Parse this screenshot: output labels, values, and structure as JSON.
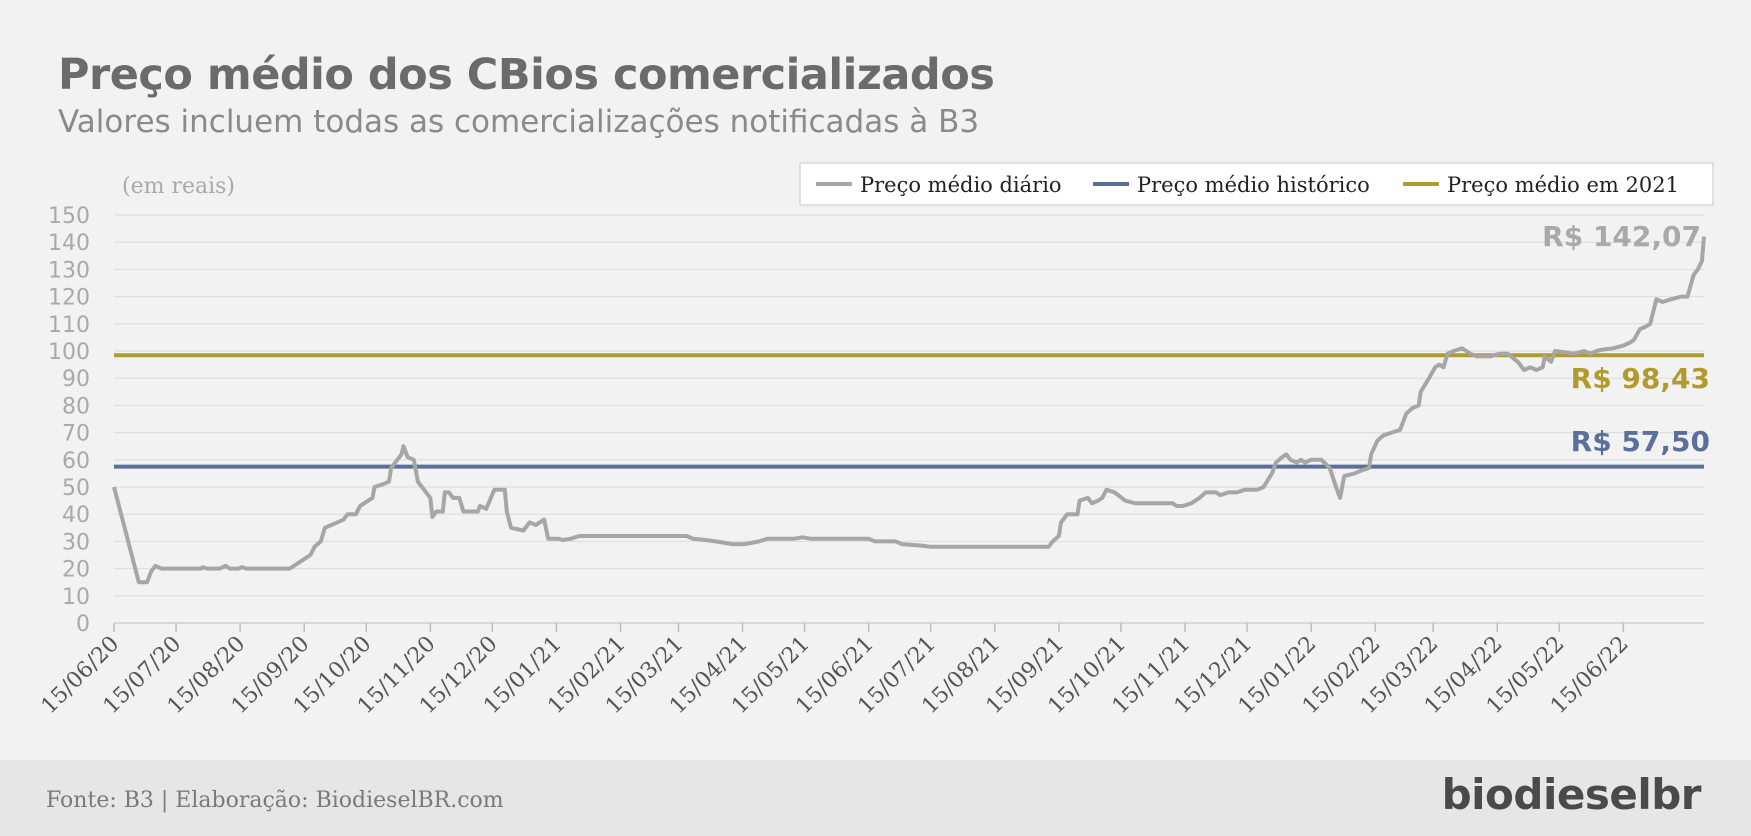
{
  "header": {
    "title": "Preço médio dos CBios comercializados",
    "subtitle": "Valores incluem todas as comercializações notificadas à B3"
  },
  "footer": {
    "source": "Fonte: B3 | Elaboração: BiodieselBR.com",
    "logo_text": "biodieselbr"
  },
  "colors": {
    "daily": "#a6a6a6",
    "historic": "#5b6f9a",
    "year2021": "#b39a2e",
    "grid": "#dcdcdc",
    "axis_text": "#a9a9a9"
  },
  "chart_data": {
    "type": "line",
    "unit_label": "(em reais)",
    "ylim": [
      0,
      150
    ],
    "yticks": [
      0,
      10,
      20,
      30,
      40,
      50,
      60,
      70,
      80,
      90,
      100,
      110,
      120,
      130,
      140,
      150
    ],
    "xticks": [
      "15/06/20",
      "15/07/20",
      "15/08/20",
      "15/09/20",
      "15/10/20",
      "15/11/20",
      "15/12/20",
      "15/01/21",
      "15/02/21",
      "15/03/21",
      "15/04/21",
      "15/05/21",
      "15/06/21",
      "15/07/21",
      "15/08/21",
      "15/09/21",
      "15/10/21",
      "15/11/21",
      "15/12/21",
      "15/01/22",
      "15/02/22",
      "15/03/22",
      "15/04/22",
      "15/05/22",
      "15/06/22"
    ],
    "grid": true,
    "legend_position": "top-right",
    "series": [
      {
        "name": "Preço médio diário",
        "end_label": "R$ 142,07",
        "points": [
          [
            "2020-06-15",
            50
          ],
          [
            "2020-06-27",
            15
          ],
          [
            "2020-07-01",
            15
          ],
          [
            "2020-07-03",
            19
          ],
          [
            "2020-07-05",
            21
          ],
          [
            "2020-07-08",
            20
          ],
          [
            "2020-07-20",
            20
          ],
          [
            "2020-07-27",
            20
          ],
          [
            "2020-07-28",
            20.5
          ],
          [
            "2020-07-30",
            20
          ],
          [
            "2020-08-05",
            20
          ],
          [
            "2020-08-08",
            21
          ],
          [
            "2020-08-10",
            20
          ],
          [
            "2020-08-14",
            20
          ],
          [
            "2020-08-16",
            20.5
          ],
          [
            "2020-08-18",
            20
          ],
          [
            "2020-09-05",
            20
          ],
          [
            "2020-09-08",
            20
          ],
          [
            "2020-09-12",
            22
          ],
          [
            "2020-09-16",
            24
          ],
          [
            "2020-09-18",
            25
          ],
          [
            "2020-09-20",
            28
          ],
          [
            "2020-09-23",
            30
          ],
          [
            "2020-09-25",
            35
          ],
          [
            "2020-09-28",
            36
          ],
          [
            "2020-10-01",
            37
          ],
          [
            "2020-10-04",
            38
          ],
          [
            "2020-10-06",
            40
          ],
          [
            "2020-10-10",
            40
          ],
          [
            "2020-10-12",
            43
          ],
          [
            "2020-10-16",
            45
          ],
          [
            "2020-10-18",
            46
          ],
          [
            "2020-10-19",
            50
          ],
          [
            "2020-10-23",
            51
          ],
          [
            "2020-10-26",
            52
          ],
          [
            "2020-10-27",
            57
          ],
          [
            "2020-10-30",
            60
          ],
          [
            "2020-11-01",
            62
          ],
          [
            "2020-11-02",
            65
          ],
          [
            "2020-11-04",
            61
          ],
          [
            "2020-11-07",
            60
          ],
          [
            "2020-11-09",
            52
          ],
          [
            "2020-11-12",
            49
          ],
          [
            "2020-11-15",
            46
          ],
          [
            "2020-11-16",
            39
          ],
          [
            "2020-11-18",
            41
          ],
          [
            "2020-11-21",
            41
          ],
          [
            "2020-11-22",
            48
          ],
          [
            "2020-11-24",
            48
          ],
          [
            "2020-11-26",
            46
          ],
          [
            "2020-11-29",
            46
          ],
          [
            "2020-12-01",
            41
          ],
          [
            "2020-12-08",
            41
          ],
          [
            "2020-12-09",
            43
          ],
          [
            "2020-12-12",
            42
          ],
          [
            "2020-12-16",
            49
          ],
          [
            "2020-12-21",
            49
          ],
          [
            "2020-12-22",
            41
          ],
          [
            "2020-12-24",
            35
          ],
          [
            "2020-12-30",
            34
          ],
          [
            "2021-01-02",
            37
          ],
          [
            "2021-01-05",
            36
          ],
          [
            "2021-01-09",
            38
          ],
          [
            "2021-01-11",
            31
          ],
          [
            "2021-01-16",
            31
          ],
          [
            "2021-01-18",
            30.5
          ],
          [
            "2021-01-22",
            31
          ],
          [
            "2021-01-26",
            32
          ],
          [
            "2021-02-20",
            32
          ],
          [
            "2021-03-14",
            32
          ],
          [
            "2021-03-19",
            32
          ],
          [
            "2021-03-22",
            31
          ],
          [
            "2021-03-28",
            30.5
          ],
          [
            "2021-04-02",
            30
          ],
          [
            "2021-04-10",
            29
          ],
          [
            "2021-04-16",
            29
          ],
          [
            "2021-04-23",
            30
          ],
          [
            "2021-04-27",
            31
          ],
          [
            "2021-05-10",
            31
          ],
          [
            "2021-05-14",
            31.5
          ],
          [
            "2021-05-18",
            31
          ],
          [
            "2021-06-15",
            31
          ],
          [
            "2021-06-18",
            30
          ],
          [
            "2021-06-28",
            30
          ],
          [
            "2021-07-01",
            29
          ],
          [
            "2021-07-10",
            28.5
          ],
          [
            "2021-07-15",
            28
          ],
          [
            "2021-08-15",
            28
          ],
          [
            "2021-09-10",
            28
          ],
          [
            "2021-09-12",
            30
          ],
          [
            "2021-09-15",
            32
          ],
          [
            "2021-09-16",
            37
          ],
          [
            "2021-09-19",
            40
          ],
          [
            "2021-09-24",
            40
          ],
          [
            "2021-09-25",
            45
          ],
          [
            "2021-09-29",
            46
          ],
          [
            "2021-10-01",
            44
          ],
          [
            "2021-10-04",
            45
          ],
          [
            "2021-10-06",
            46
          ],
          [
            "2021-10-08",
            49
          ],
          [
            "2021-10-12",
            48
          ],
          [
            "2021-10-17",
            45
          ],
          [
            "2021-10-22",
            44
          ],
          [
            "2021-11-05",
            44
          ],
          [
            "2021-11-09",
            44
          ],
          [
            "2021-11-11",
            43
          ],
          [
            "2021-11-14",
            43
          ],
          [
            "2021-11-18",
            44
          ],
          [
            "2021-11-22",
            46
          ],
          [
            "2021-11-25",
            48
          ],
          [
            "2021-11-30",
            48
          ],
          [
            "2021-12-02",
            47
          ],
          [
            "2021-12-06",
            48
          ],
          [
            "2021-12-10",
            48
          ],
          [
            "2021-12-14",
            49
          ],
          [
            "2021-12-20",
            49
          ],
          [
            "2021-12-23",
            50
          ],
          [
            "2021-12-27",
            55
          ],
          [
            "2021-12-29",
            59
          ],
          [
            "2022-01-01",
            61
          ],
          [
            "2022-01-03",
            62
          ],
          [
            "2022-01-05",
            60
          ],
          [
            "2022-01-08",
            59
          ],
          [
            "2022-01-10",
            60
          ],
          [
            "2022-01-12",
            59
          ],
          [
            "2022-01-15",
            60
          ],
          [
            "2022-01-20",
            60
          ],
          [
            "2022-01-24",
            57
          ],
          [
            "2022-01-27",
            50
          ],
          [
            "2022-01-29",
            46
          ],
          [
            "2022-01-31",
            54
          ],
          [
            "2022-02-05",
            55
          ],
          [
            "2022-02-08",
            56
          ],
          [
            "2022-02-12",
            57
          ],
          [
            "2022-02-13",
            62
          ],
          [
            "2022-02-16",
            67
          ],
          [
            "2022-02-19",
            69
          ],
          [
            "2022-02-23",
            70
          ],
          [
            "2022-02-27",
            71
          ],
          [
            "2022-03-02",
            77
          ],
          [
            "2022-03-05",
            79
          ],
          [
            "2022-03-08",
            80
          ],
          [
            "2022-03-09",
            85
          ],
          [
            "2022-03-13",
            90
          ],
          [
            "2022-03-16",
            94
          ],
          [
            "2022-03-18",
            95
          ],
          [
            "2022-03-20",
            94
          ],
          [
            "2022-03-22",
            99
          ],
          [
            "2022-03-25",
            100
          ],
          [
            "2022-03-29",
            101
          ],
          [
            "2022-04-02",
            99
          ],
          [
            "2022-04-05",
            98
          ],
          [
            "2022-04-12",
            98
          ],
          [
            "2022-04-16",
            99
          ],
          [
            "2022-04-20",
            99
          ],
          [
            "2022-04-25",
            96
          ],
          [
            "2022-04-28",
            93
          ],
          [
            "2022-05-01",
            94
          ],
          [
            "2022-05-04",
            93
          ],
          [
            "2022-05-07",
            94
          ],
          [
            "2022-05-08",
            98
          ],
          [
            "2022-05-11",
            96
          ],
          [
            "2022-05-13",
            100
          ],
          [
            "2022-05-18",
            99.5
          ],
          [
            "2022-05-22",
            99
          ],
          [
            "2022-05-27",
            100
          ],
          [
            "2022-05-30",
            99
          ],
          [
            "2022-06-02",
            100
          ],
          [
            "2022-06-05",
            100.5
          ],
          [
            "2022-06-10",
            101
          ],
          [
            "2022-06-15",
            102
          ],
          [
            "2022-06-18",
            103
          ],
          [
            "2022-06-20",
            104
          ],
          [
            "2022-06-23",
            108
          ],
          [
            "2022-06-26",
            109
          ],
          [
            "2022-06-28",
            110
          ],
          [
            "2022-07-01",
            119
          ],
          [
            "2022-07-04",
            118
          ],
          [
            "2022-07-08",
            119
          ],
          [
            "2022-07-13",
            120
          ],
          [
            "2022-07-16",
            120
          ],
          [
            "2022-07-19",
            128
          ],
          [
            "2022-07-21",
            130
          ],
          [
            "2022-07-23",
            133
          ],
          [
            "2022-07-24",
            142.07
          ]
        ]
      },
      {
        "name": "Preço médio histórico",
        "value": 57.5,
        "end_label": "R$ 57,50"
      },
      {
        "name": "Preço médio em 2021",
        "value": 98.43,
        "end_label": "R$ 98,43"
      }
    ]
  }
}
